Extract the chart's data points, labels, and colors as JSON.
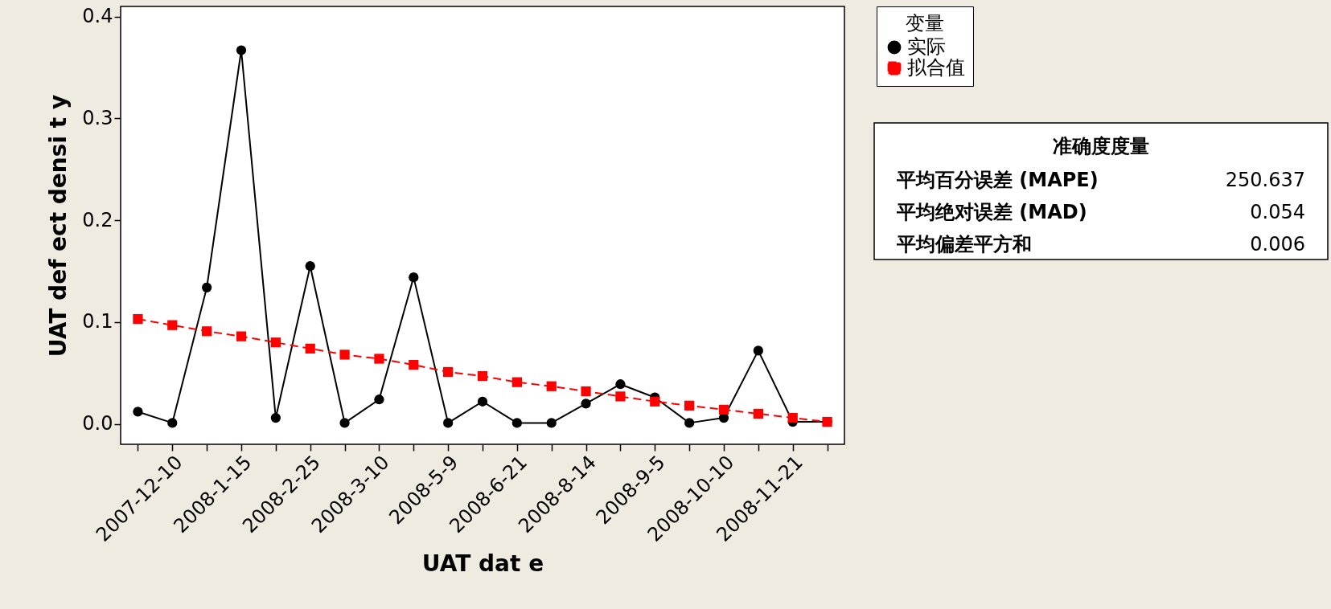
{
  "chart_data": {
    "type": "line",
    "xlabel": "UAT  dat e",
    "ylabel": "UAT  def ect  densi t y",
    "legend_title": "变量",
    "legend": "top right",
    "categories": [
      null,
      "2007-12-10",
      null,
      "2008-1-15",
      null,
      "2008-2-25",
      null,
      "2008-3-10",
      null,
      "2008-5-9",
      null,
      "2008-6-21",
      null,
      "2008-8-14",
      null,
      "2008-9-5",
      null,
      "2008-10-10",
      null,
      "2008-11-21",
      null
    ],
    "series": [
      {
        "name": "实际",
        "color": "#000000",
        "marker": "circle",
        "line_style": "solid",
        "values": [
          0.012,
          0.001,
          0.134,
          0.367,
          0.006,
          0.155,
          0.001,
          0.024,
          0.144,
          0.001,
          0.022,
          0.001,
          0.001,
          0.02,
          0.039,
          0.026,
          0.001,
          0.006,
          0.072,
          0.002,
          0.002
        ]
      },
      {
        "name": "拟合值",
        "color": "#ff0000",
        "marker": "square",
        "line_style": "dashed",
        "values": [
          0.103,
          0.097,
          0.091,
          0.086,
          0.08,
          0.074,
          0.068,
          0.064,
          0.058,
          0.051,
          0.047,
          0.041,
          0.037,
          0.032,
          0.027,
          0.022,
          0.018,
          0.014,
          0.01,
          0.006,
          0.002
        ]
      }
    ],
    "ylim": [
      -0.02,
      0.41
    ],
    "yticks": [
      {
        "value": 0,
        "label": "0.0"
      },
      {
        "value": 0.1,
        "label": "0.1"
      },
      {
        "value": 0.2,
        "label": "0.2"
      },
      {
        "value": 0.3,
        "label": "0.3"
      },
      {
        "value": 0.4,
        "label": "0.4"
      }
    ],
    "annotations": [
      "准确度度量",
      "平均百分误差 (MAPE)",
      "250.637",
      "平均绝对误差 (MAD)",
      "0.054",
      "平均偏差平方和",
      "0.006"
    ]
  }
}
